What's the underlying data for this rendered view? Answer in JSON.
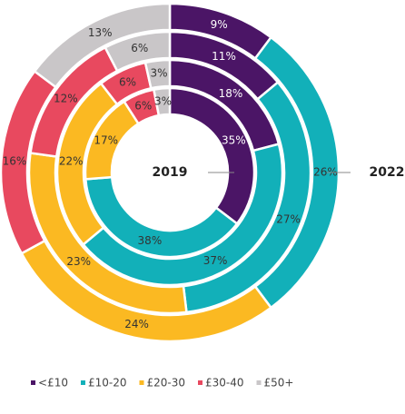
{
  "chart_data": {
    "type": "donut",
    "ring_labels": [
      "2019",
      null,
      null,
      "2022"
    ],
    "series": [
      {
        "name": "<£10",
        "color": "#4b1566",
        "values": [
          35,
          18,
          11,
          9
        ],
        "value_labels": [
          "35%",
          "18%",
          "11%",
          "9%"
        ]
      },
      {
        "name": "£10-20",
        "color": "#12b0b9",
        "values": [
          38,
          37,
          27,
          26
        ],
        "value_labels": [
          "38%",
          "37%",
          "27%",
          "26%"
        ]
      },
      {
        "name": "£20-30",
        "color": "#fbb922",
        "values": [
          17,
          22,
          23,
          24
        ],
        "value_labels": [
          "17%",
          "22%",
          "23%",
          "24%"
        ]
      },
      {
        "name": "£30-40",
        "color": "#e8495f",
        "values": [
          6,
          6,
          12,
          16
        ],
        "value_labels": [
          "6%",
          "6%",
          "12%",
          "16%"
        ]
      },
      {
        "name": "£50+",
        "color": "#c9c6c8",
        "values": [
          3,
          3,
          6,
          13
        ],
        "value_labels": [
          "3%",
          "3%",
          "6%",
          "13%"
        ]
      }
    ],
    "legend": "bottom"
  }
}
